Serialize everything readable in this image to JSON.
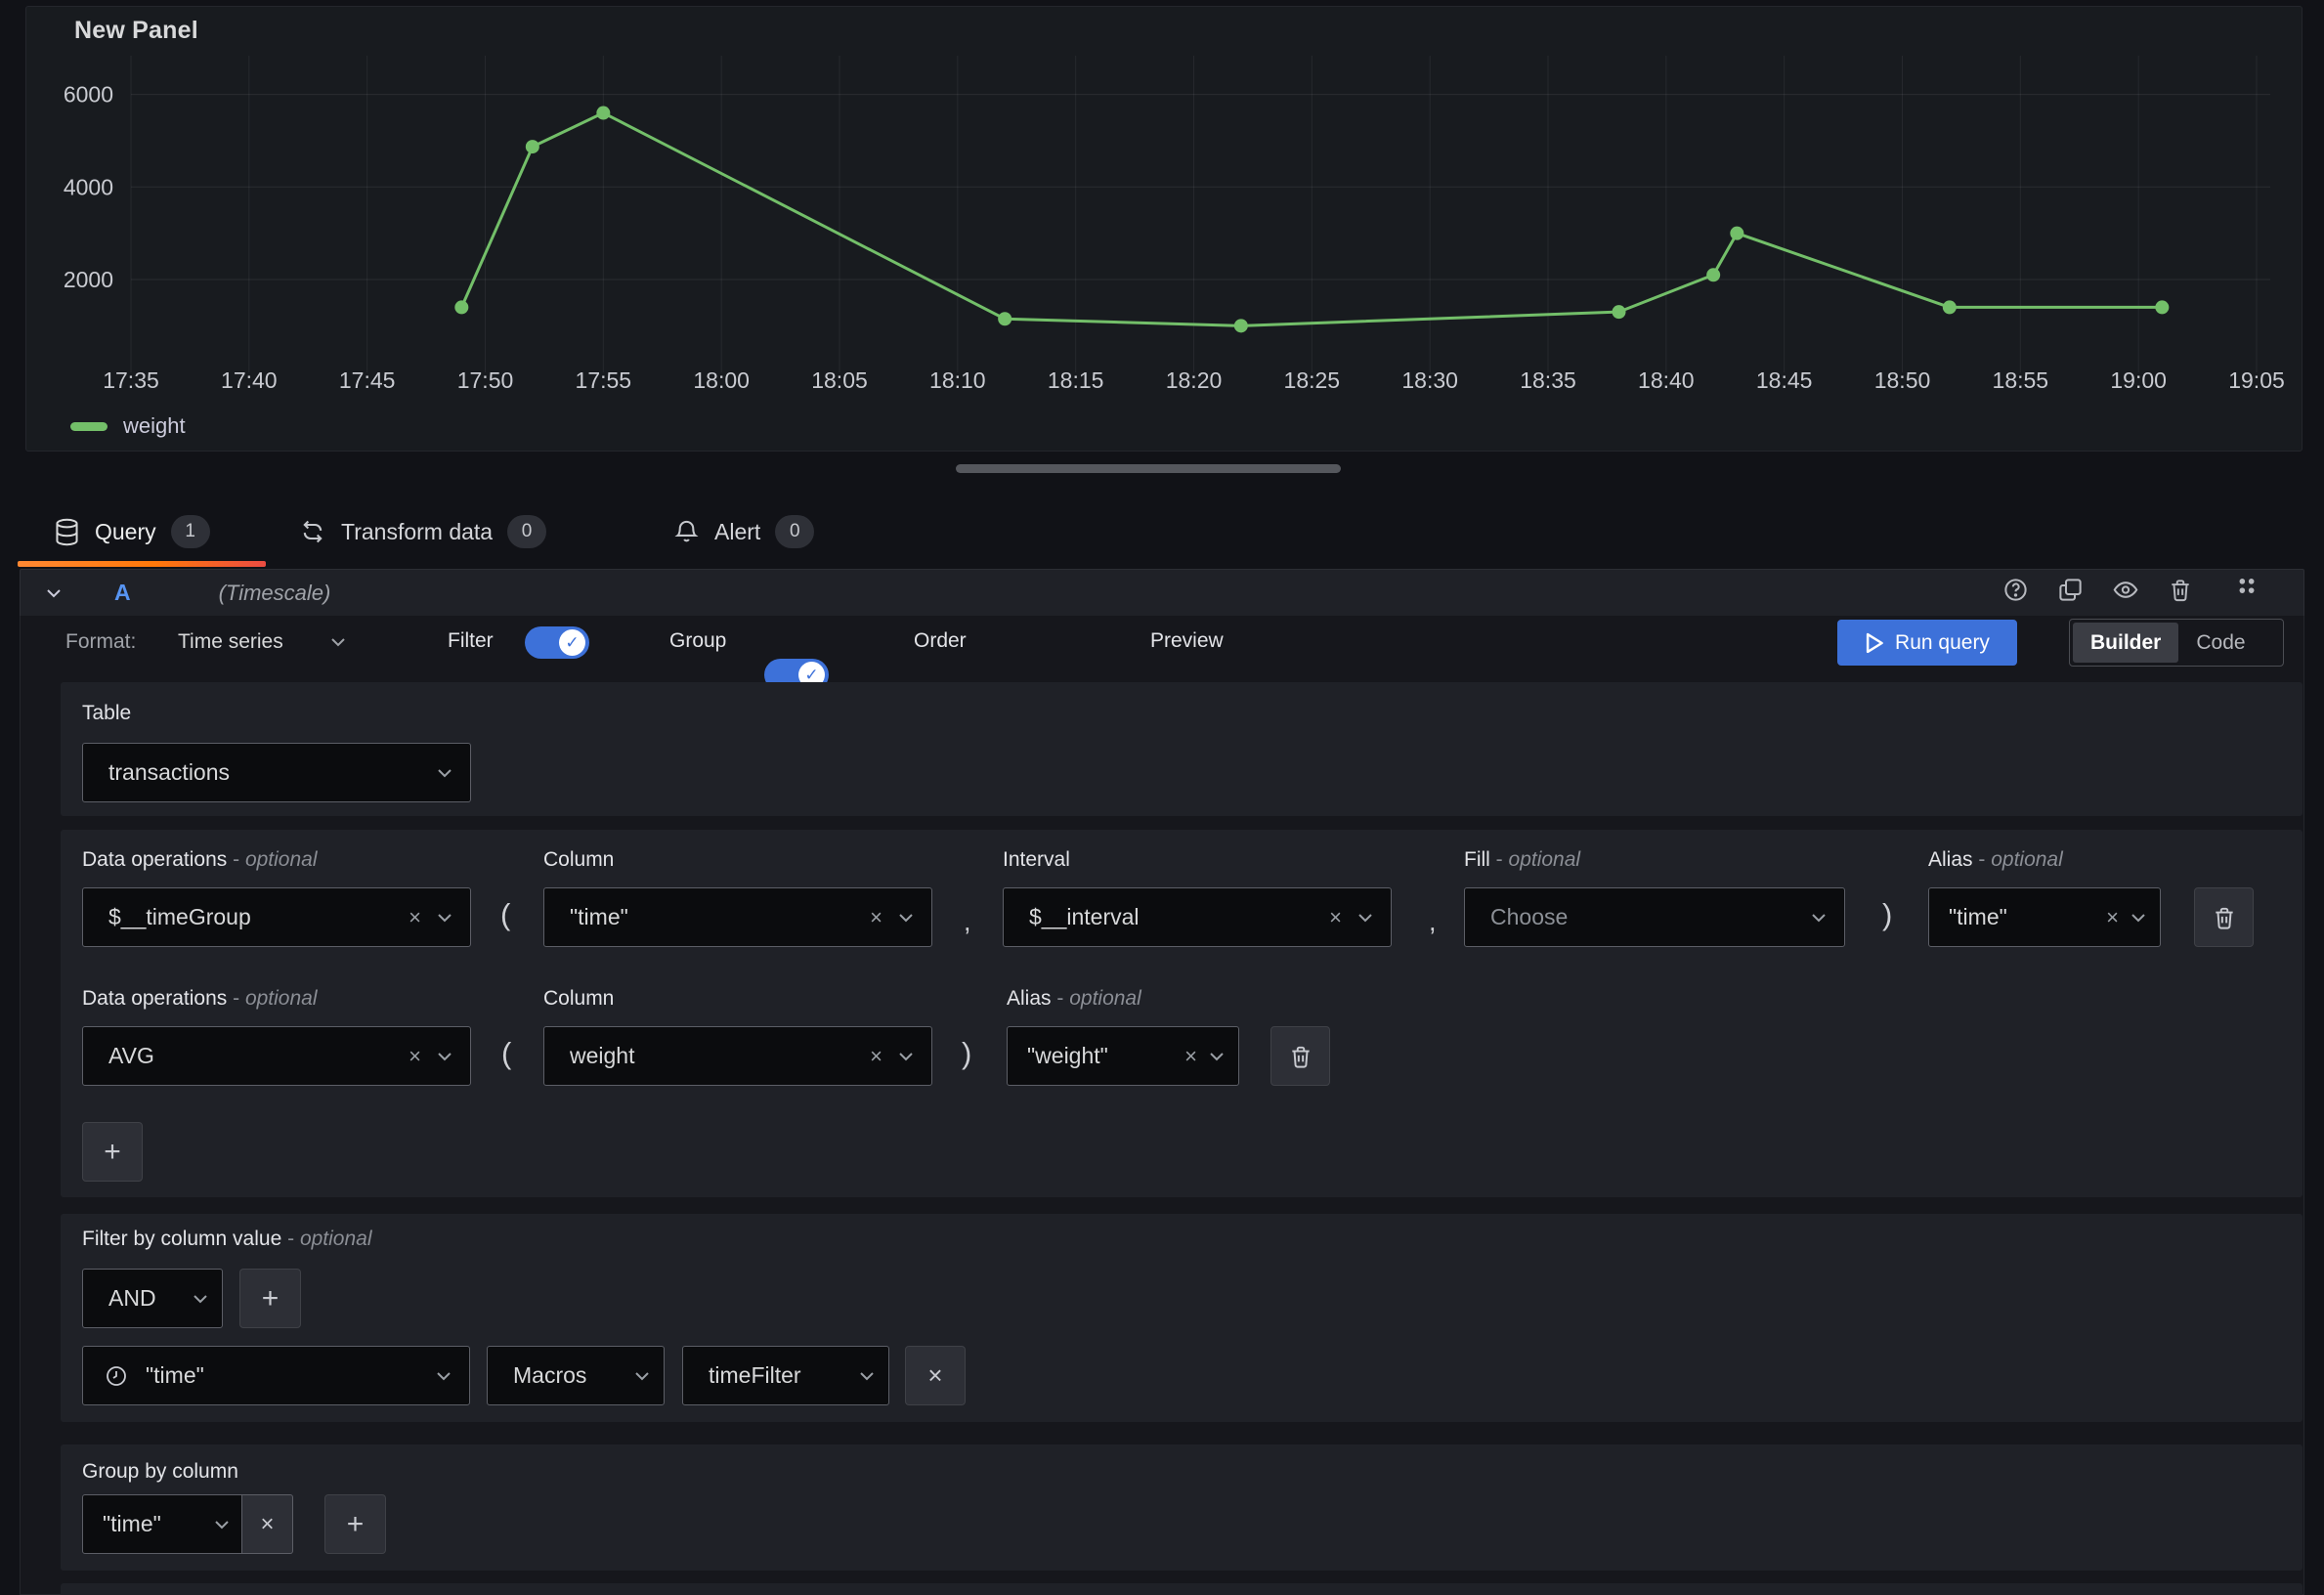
{
  "panel": {
    "title": "New Panel",
    "legend_label": "weight"
  },
  "chart_data": {
    "type": "line",
    "title": "New Panel",
    "series_name": "weight",
    "line_color": "#73bf69",
    "x_ticks": [
      "17:35",
      "17:40",
      "17:45",
      "17:50",
      "17:55",
      "18:00",
      "18:05",
      "18:10",
      "18:15",
      "18:20",
      "18:25",
      "18:30",
      "18:35",
      "18:40",
      "18:45",
      "18:50",
      "18:55",
      "19:00",
      "19:05"
    ],
    "y_ticks": [
      2000,
      4000,
      6000
    ],
    "ylim": [
      0,
      6400
    ],
    "grid": true,
    "legend_position": "bottom-left",
    "points": [
      {
        "x": "17:49",
        "y": 1400
      },
      {
        "x": "17:52",
        "y": 4870
      },
      {
        "x": "17:55",
        "y": 5600
      },
      {
        "x": "18:12",
        "y": 1150
      },
      {
        "x": "18:22",
        "y": 1000
      },
      {
        "x": "18:38",
        "y": 1300
      },
      {
        "x": "18:42",
        "y": 2100
      },
      {
        "x": "18:43",
        "y": 3000
      },
      {
        "x": "18:52",
        "y": 1400
      },
      {
        "x": "19:01",
        "y": 1400
      }
    ]
  },
  "tabs": [
    {
      "label": "Query",
      "count": "1"
    },
    {
      "label": "Transform data",
      "count": "0"
    },
    {
      "label": "Alert",
      "count": "0"
    }
  ],
  "query_row": {
    "ref": "A",
    "datasource": "(Timescale)"
  },
  "toolbar": {
    "format_label": "Format:",
    "format_value": "Time series",
    "toggles": [
      {
        "label": "Filter",
        "on": true
      },
      {
        "label": "Group",
        "on": true
      },
      {
        "label": "Order",
        "on": false
      },
      {
        "label": "Preview",
        "on": true
      }
    ],
    "run_label": "Run query",
    "builder_label": "Builder",
    "code_label": "Code"
  },
  "table_section": {
    "label": "Table",
    "value": "transactions"
  },
  "dataops": {
    "label_main": "Data operations",
    "label_optional": "optional",
    "label_column": "Column",
    "label_interval": "Interval",
    "label_fill": "Fill",
    "label_alias": "Alias",
    "row1": {
      "op": "$__timeGroup",
      "column": "\"time\"",
      "interval": "$__interval",
      "fill_placeholder": "Choose",
      "alias": "\"time\""
    },
    "row2": {
      "op": "AVG",
      "column": "weight",
      "alias": "\"weight\""
    }
  },
  "filter_section": {
    "label": "Filter by column value",
    "label_optional": "optional",
    "logic": "AND",
    "field": "\"time\"",
    "macros": "Macros",
    "macro_value": "timeFilter"
  },
  "group_section": {
    "label": "Group by column",
    "field": "\"time\""
  },
  "glyphs": {
    "open_paren": "(",
    "close_paren": ")",
    "comma": ",",
    "close": "×",
    "plus": "+"
  }
}
